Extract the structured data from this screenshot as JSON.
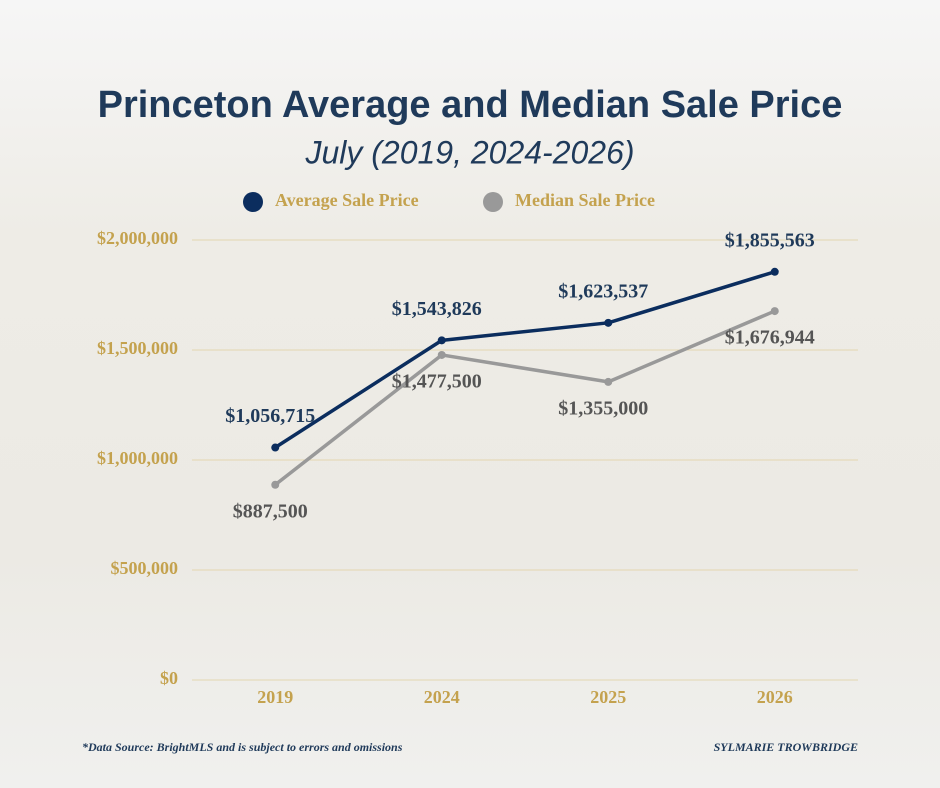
{
  "chart_data": {
    "type": "line",
    "title": "Princeton Average and Median Sale Price",
    "subtitle": "July (2019, 2024-2026)",
    "categories": [
      "2019",
      "2024",
      "2025",
      "2026"
    ],
    "series": [
      {
        "name": "Average Sale Price",
        "color": "#0b2d5e",
        "values": [
          1056715,
          1543826,
          1623537,
          1855563
        ],
        "value_labels": [
          "$1,056,715",
          "$1,543,826",
          "$1,623,537",
          "$1,855,563"
        ]
      },
      {
        "name": "Median Sale Price",
        "color": "#999999",
        "values": [
          887500,
          1477500,
          1355000,
          1676944
        ],
        "value_labels": [
          "$887,500",
          "$1,477,500",
          "$1,355,000",
          "$1,676,944"
        ]
      }
    ],
    "ylim": [
      0,
      2000000
    ],
    "yticks": [
      {
        "value": 0,
        "label": "$0"
      },
      {
        "value": 500000,
        "label": "$500,000"
      },
      {
        "value": 1000000,
        "label": "$1,000,000"
      },
      {
        "value": 1500000,
        "label": "$1,500,000"
      },
      {
        "value": 2000000,
        "label": "$2,000,000"
      }
    ],
    "grid": true,
    "legend": "top",
    "source_note": "*Data Source: BrightMLS and is subject to errors and omissions",
    "credit": "SYLMARIE TROWBRIDGE"
  }
}
